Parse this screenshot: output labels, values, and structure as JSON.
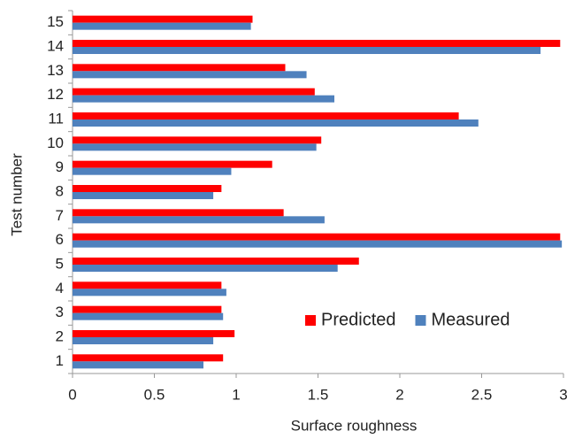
{
  "chart_data": {
    "type": "hbar",
    "xlabel": "Surface roughness",
    "ylabel": "Test number",
    "categories": [
      "1",
      "2",
      "3",
      "4",
      "5",
      "6",
      "7",
      "8",
      "9",
      "10",
      "11",
      "12",
      "13",
      "14",
      "15"
    ],
    "series": [
      {
        "name": "Predicted",
        "color": "#ff0000",
        "values": [
          0.92,
          0.99,
          0.91,
          0.91,
          1.75,
          2.98,
          1.29,
          0.91,
          1.22,
          1.52,
          2.36,
          1.48,
          1.3,
          2.98,
          1.1
        ]
      },
      {
        "name": "Measured",
        "color": "#4f81bd",
        "values": [
          0.8,
          0.86,
          0.92,
          0.94,
          1.62,
          2.99,
          1.54,
          0.86,
          0.97,
          1.49,
          2.48,
          1.6,
          1.43,
          2.86,
          1.09
        ]
      }
    ],
    "xlim": [
      0,
      3
    ],
    "xticks": [
      0,
      0.5,
      1,
      1.5,
      2,
      2.5,
      3
    ],
    "legend": "lower-right"
  }
}
